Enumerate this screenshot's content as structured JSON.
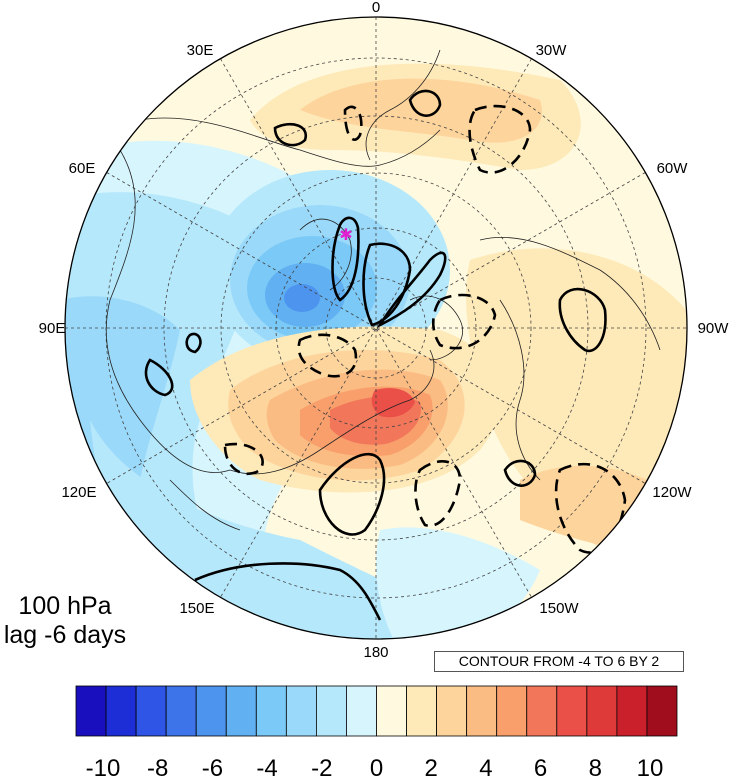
{
  "panel": {
    "level": "100 hPa",
    "lag": "lag -6 days"
  },
  "contour_info": "CONTOUR FROM -4 TO 6 BY 2",
  "longitude_labels": [
    "0",
    "30W",
    "60W",
    "90W",
    "120W",
    "150W",
    "180",
    "150E",
    "120E",
    "90E",
    "60E",
    "30E"
  ],
  "colorbar": {
    "tick_labels": [
      "-10",
      "-8",
      "-6",
      "-4",
      "-2",
      "0",
      "2",
      "4",
      "6",
      "8",
      "10"
    ],
    "colors": [
      "#1a0fbf",
      "#1d2ed6",
      "#2e55e6",
      "#3e74ea",
      "#4d94ee",
      "#60b0f2",
      "#7bc9f6",
      "#9ad9f9",
      "#b6e8fb",
      "#d7f5fd",
      "#fffadf",
      "#fee9b8",
      "#fdd49c",
      "#fbbc83",
      "#f89f6c",
      "#f2765a",
      "#ea4f48",
      "#de3a3a",
      "#c9202b",
      "#a00d1d"
    ]
  },
  "projection": "north-polar-stereographic",
  "marker": {
    "color": "#e020d0",
    "shape": "star"
  }
}
